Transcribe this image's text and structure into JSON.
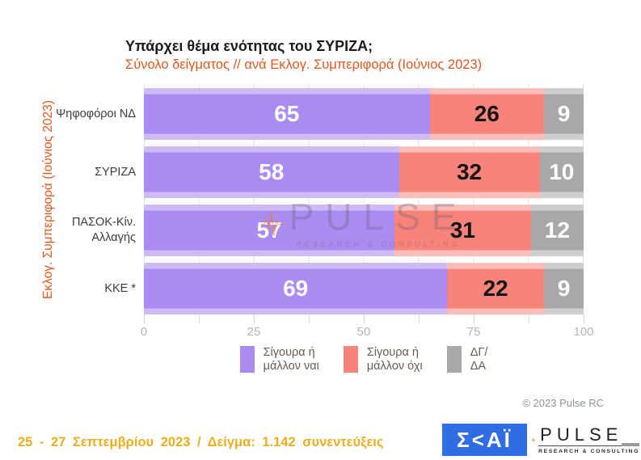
{
  "chart": {
    "title": "Υπάρχει θέμα ενότητας του ΣΥΡΙΖΑ;",
    "subtitle": "Σύνολο δείγματος // ανά Εκλογ. Συμπεριφορά (Ιούνιος 2023)",
    "y_axis_label": "Εκλογ. Συμπεριφορά (Ιούνιος 2023)",
    "copyright": "© 2023 Pulse RC"
  },
  "chart_data": {
    "type": "bar",
    "orientation": "horizontal",
    "stacked": true,
    "grid": true,
    "legend_position": "bottom",
    "categories": [
      "Ψηφοφόροι ΝΔ",
      "ΣΥΡΙΖΑ",
      "ΠΑΣΟΚ-Κίν. Αλλαγής",
      "ΚΚΕ *"
    ],
    "series": [
      {
        "name": "Σίγουρα ή μάλλον ναι",
        "color": "#a98bf1",
        "color_light": "#cdbbf6",
        "values": [
          65,
          58,
          57,
          69
        ]
      },
      {
        "name": "Σίγουρα ή μάλλον όχι",
        "color": "#f8837b",
        "color_light": "#fbbdb8",
        "values": [
          26,
          32,
          31,
          22
        ]
      },
      {
        "name": "ΔΓ/ΔΑ",
        "color": "#a8a8a8",
        "color_light": "#cecece",
        "values": [
          9,
          10,
          12,
          9
        ]
      }
    ],
    "xlim": [
      0,
      100
    ],
    "x_ticks": [
      0,
      25,
      50,
      75,
      100
    ],
    "x_tick_labels": [
      "0",
      "25",
      "50",
      "75",
      "100"
    ]
  },
  "legend": {
    "items": [
      {
        "line1": "Σίγουρα ή",
        "line2": "μάλλον ναι"
      },
      {
        "line1": "Σίγουρα ή",
        "line2": "μάλλον όχι"
      },
      {
        "line1": "ΔΓ/",
        "line2": "ΔΑ"
      }
    ]
  },
  "watermark": {
    "name": "PULSE",
    "tagline": "RESEARCH & CONSULTING"
  },
  "footer": {
    "date_text": "25 - 27 Σεπτεμβρίου 2023 / Δείγμα: 1.142 συνεντεύξεις",
    "skai_text": "Σ<ΑΪ",
    "pulse_name": "PULSE",
    "pulse_tagline": "RESEARCH & CONSULTING"
  }
}
